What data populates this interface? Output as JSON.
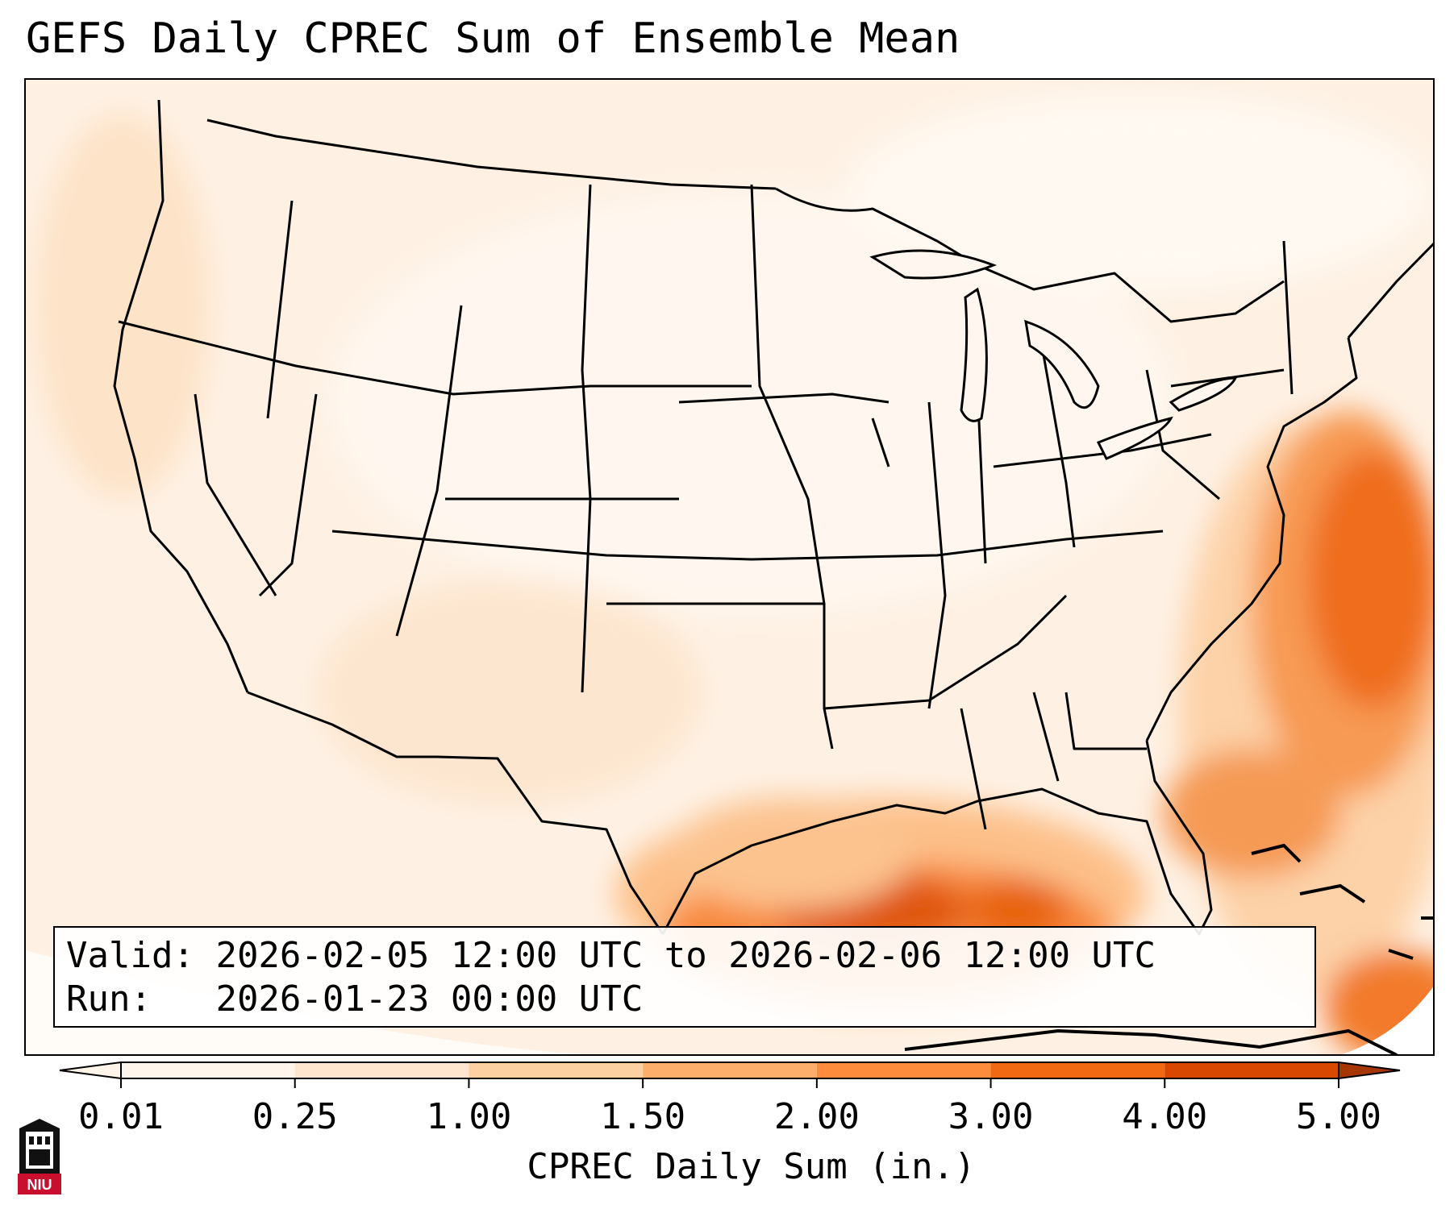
{
  "title": "GEFS Daily CPREC Sum of Ensemble Mean",
  "info": {
    "valid_label": "Valid:",
    "valid_value": "2026-02-05 12:00 UTC to 2026-02-06 12:00 UTC",
    "run_label": "Run:",
    "run_value": "2026-01-23 00:00 UTC"
  },
  "colorbar": {
    "label": "CPREC Daily Sum (in.)",
    "ticks": [
      "0.01",
      "0.25",
      "1.00",
      "1.50",
      "2.00",
      "3.00",
      "4.00",
      "5.00"
    ],
    "colors": [
      "#fff5eb",
      "#fee6ce",
      "#fdd0a2",
      "#fdae6b",
      "#fd8d3c",
      "#f16913",
      "#d94801",
      "#a63603"
    ]
  },
  "logo": {
    "text": "NIU"
  }
}
